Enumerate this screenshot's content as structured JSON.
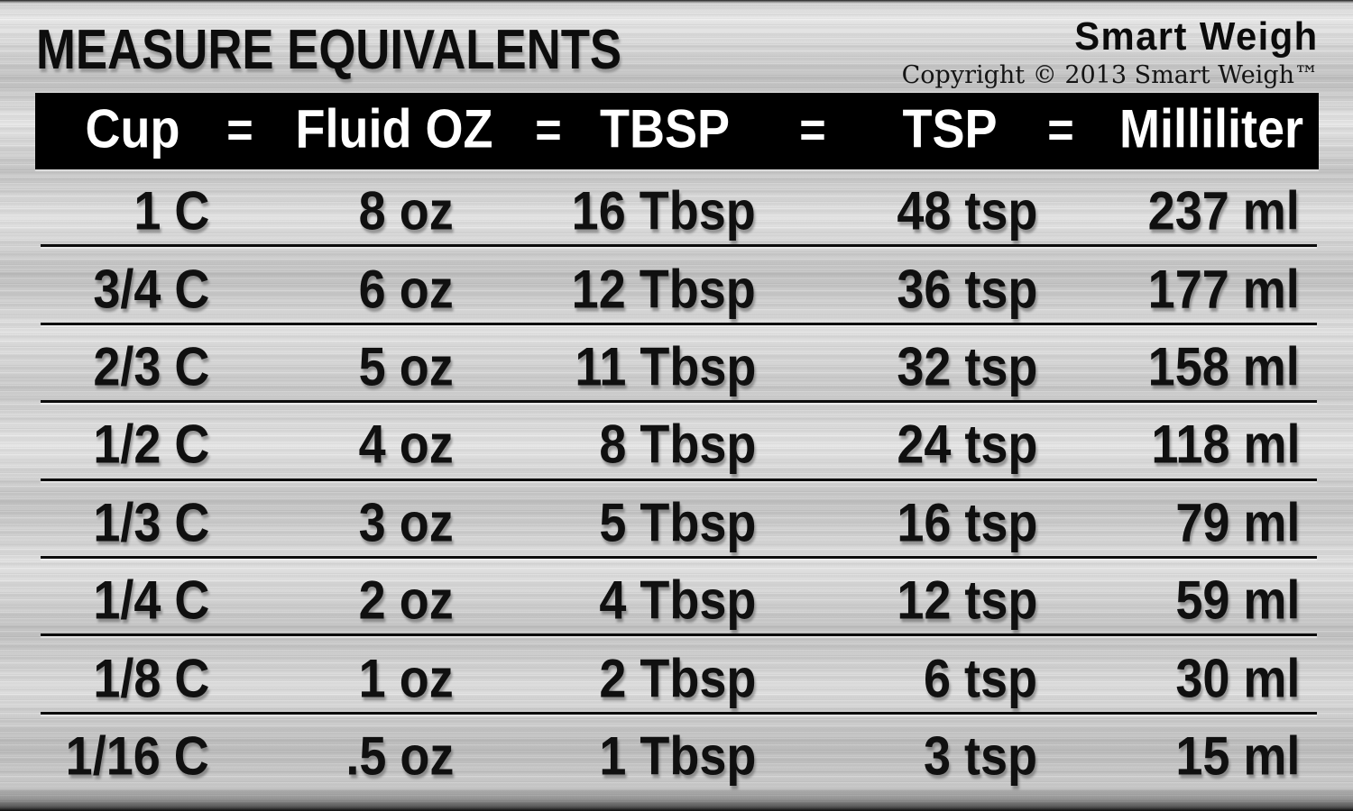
{
  "brand": {
    "logo": "Smart Weigh",
    "copyright": "Copyright © 2013 Smart Weigh™"
  },
  "chart_data": {
    "type": "table",
    "title": "MEASURE EQUIVALENTS",
    "columns": [
      "Cup",
      "Fluid OZ",
      "TBSP",
      "TSP",
      "Milliliter"
    ],
    "column_separator": "=",
    "rows": [
      [
        "1 C",
        "8 oz",
        "16 Tbsp",
        "48 tsp",
        "237 ml"
      ],
      [
        "3/4 C",
        "6 oz",
        "12 Tbsp",
        "36 tsp",
        "177 ml"
      ],
      [
        "2/3 C",
        "5 oz",
        "11 Tbsp",
        "32 tsp",
        "158 ml"
      ],
      [
        "1/2 C",
        "4 oz",
        "8 Tbsp",
        "24 tsp",
        "118 ml"
      ],
      [
        "1/3 C",
        "3 oz",
        "5 Tbsp",
        "16 tsp",
        "79 ml"
      ],
      [
        "1/4 C",
        "2 oz",
        "4 Tbsp",
        "12 tsp",
        "59 ml"
      ],
      [
        "1/8 C",
        "1 oz",
        "2 Tbsp",
        "6 tsp",
        "30 ml"
      ],
      [
        "1/16 C",
        ".5 oz",
        "1 Tbsp",
        "3 tsp",
        "15 ml"
      ]
    ],
    "layout": {
      "header_background": "#000000",
      "header_text_color": "#ffffff",
      "body_text_color": "#101010",
      "background_style": "brushed-metal",
      "grid": "horizontal-separators-only",
      "column_alignment": "right"
    }
  }
}
